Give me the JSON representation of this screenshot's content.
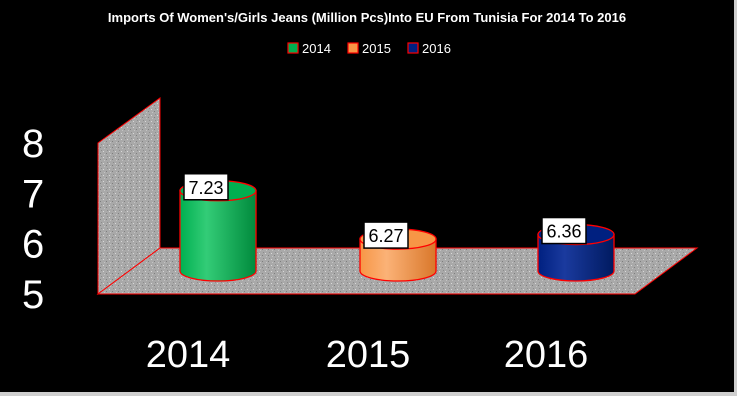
{
  "chart_data": {
    "type": "bar",
    "shape": "3d-cylinder",
    "title": "Imports Of Women's/Girls Jeans (Million Pcs)Into EU From Tunisia For 2014 To 2016",
    "xlabel": "",
    "ylabel": "",
    "categories": [
      "2014",
      "2015",
      "2016"
    ],
    "values": [
      7.23,
      6.27,
      6.36
    ],
    "data_labels": [
      "7.23",
      "6.27",
      "6.36"
    ],
    "legend": [
      "2014",
      "2015",
      "2016"
    ],
    "legend_position": "top",
    "yticks": [
      "5",
      "6",
      "7",
      "8"
    ],
    "ylim": [
      5,
      8
    ],
    "grid": false,
    "colors": [
      "#00b050",
      "#f79646",
      "#002080"
    ],
    "background": "#000000",
    "outline": "#ff0000"
  }
}
